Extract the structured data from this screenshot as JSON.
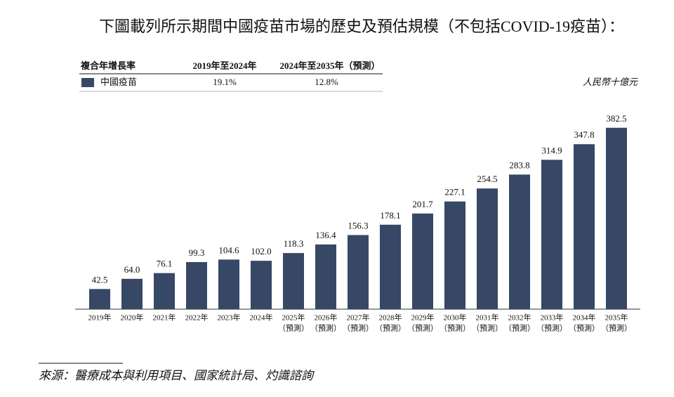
{
  "chart_data": {
    "type": "bar",
    "title": "下圖載列所示期間中國疫苗市場的歷史及預估規模（不包括COVID-19疫苗）：",
    "cagr_table": {
      "header": [
        "複合年增長率",
        "2019年至2024年",
        "2024年至2035年（預測）"
      ],
      "row": [
        "19.1%",
        "12.8%"
      ]
    },
    "unit": "人民幣十億元",
    "categories": [
      [
        "2019年"
      ],
      [
        "2020年"
      ],
      [
        "2021年"
      ],
      [
        "2022年"
      ],
      [
        "2023年"
      ],
      [
        "2024年"
      ],
      [
        "2025年",
        "（預測）"
      ],
      [
        "2026年",
        "（預測）"
      ],
      [
        "2027年",
        "（預測）"
      ],
      [
        "2028年",
        "（預測）"
      ],
      [
        "2029年",
        "（預測）"
      ],
      [
        "2030年",
        "（預測）"
      ],
      [
        "2031年",
        "（預測）"
      ],
      [
        "2032年",
        "（預測）"
      ],
      [
        "2033年",
        "（預測）"
      ],
      [
        "2034年",
        "（預測）"
      ],
      [
        "2035年",
        "（預測）"
      ]
    ],
    "series": [
      {
        "name": "中國疫苗",
        "color": "#374766",
        "values": [
          42.5,
          64.0,
          76.1,
          99.3,
          104.6,
          102.0,
          118.3,
          136.4,
          156.3,
          178.1,
          201.7,
          227.1,
          254.5,
          283.8,
          314.9,
          347.8,
          382.5
        ],
        "value_labels": [
          "42.5",
          "64.0",
          "76.1",
          "99.3",
          "104.6",
          "102.0",
          "118.3",
          "136.4",
          "156.3",
          "178.1",
          "201.7",
          "227.1",
          "254.5",
          "283.8",
          "314.9",
          "347.8",
          "382.5"
        ]
      }
    ],
    "ylim": [
      0,
      400
    ],
    "source": "來源：醫療成本與利用項目、國家統計局、灼識諮詢"
  }
}
